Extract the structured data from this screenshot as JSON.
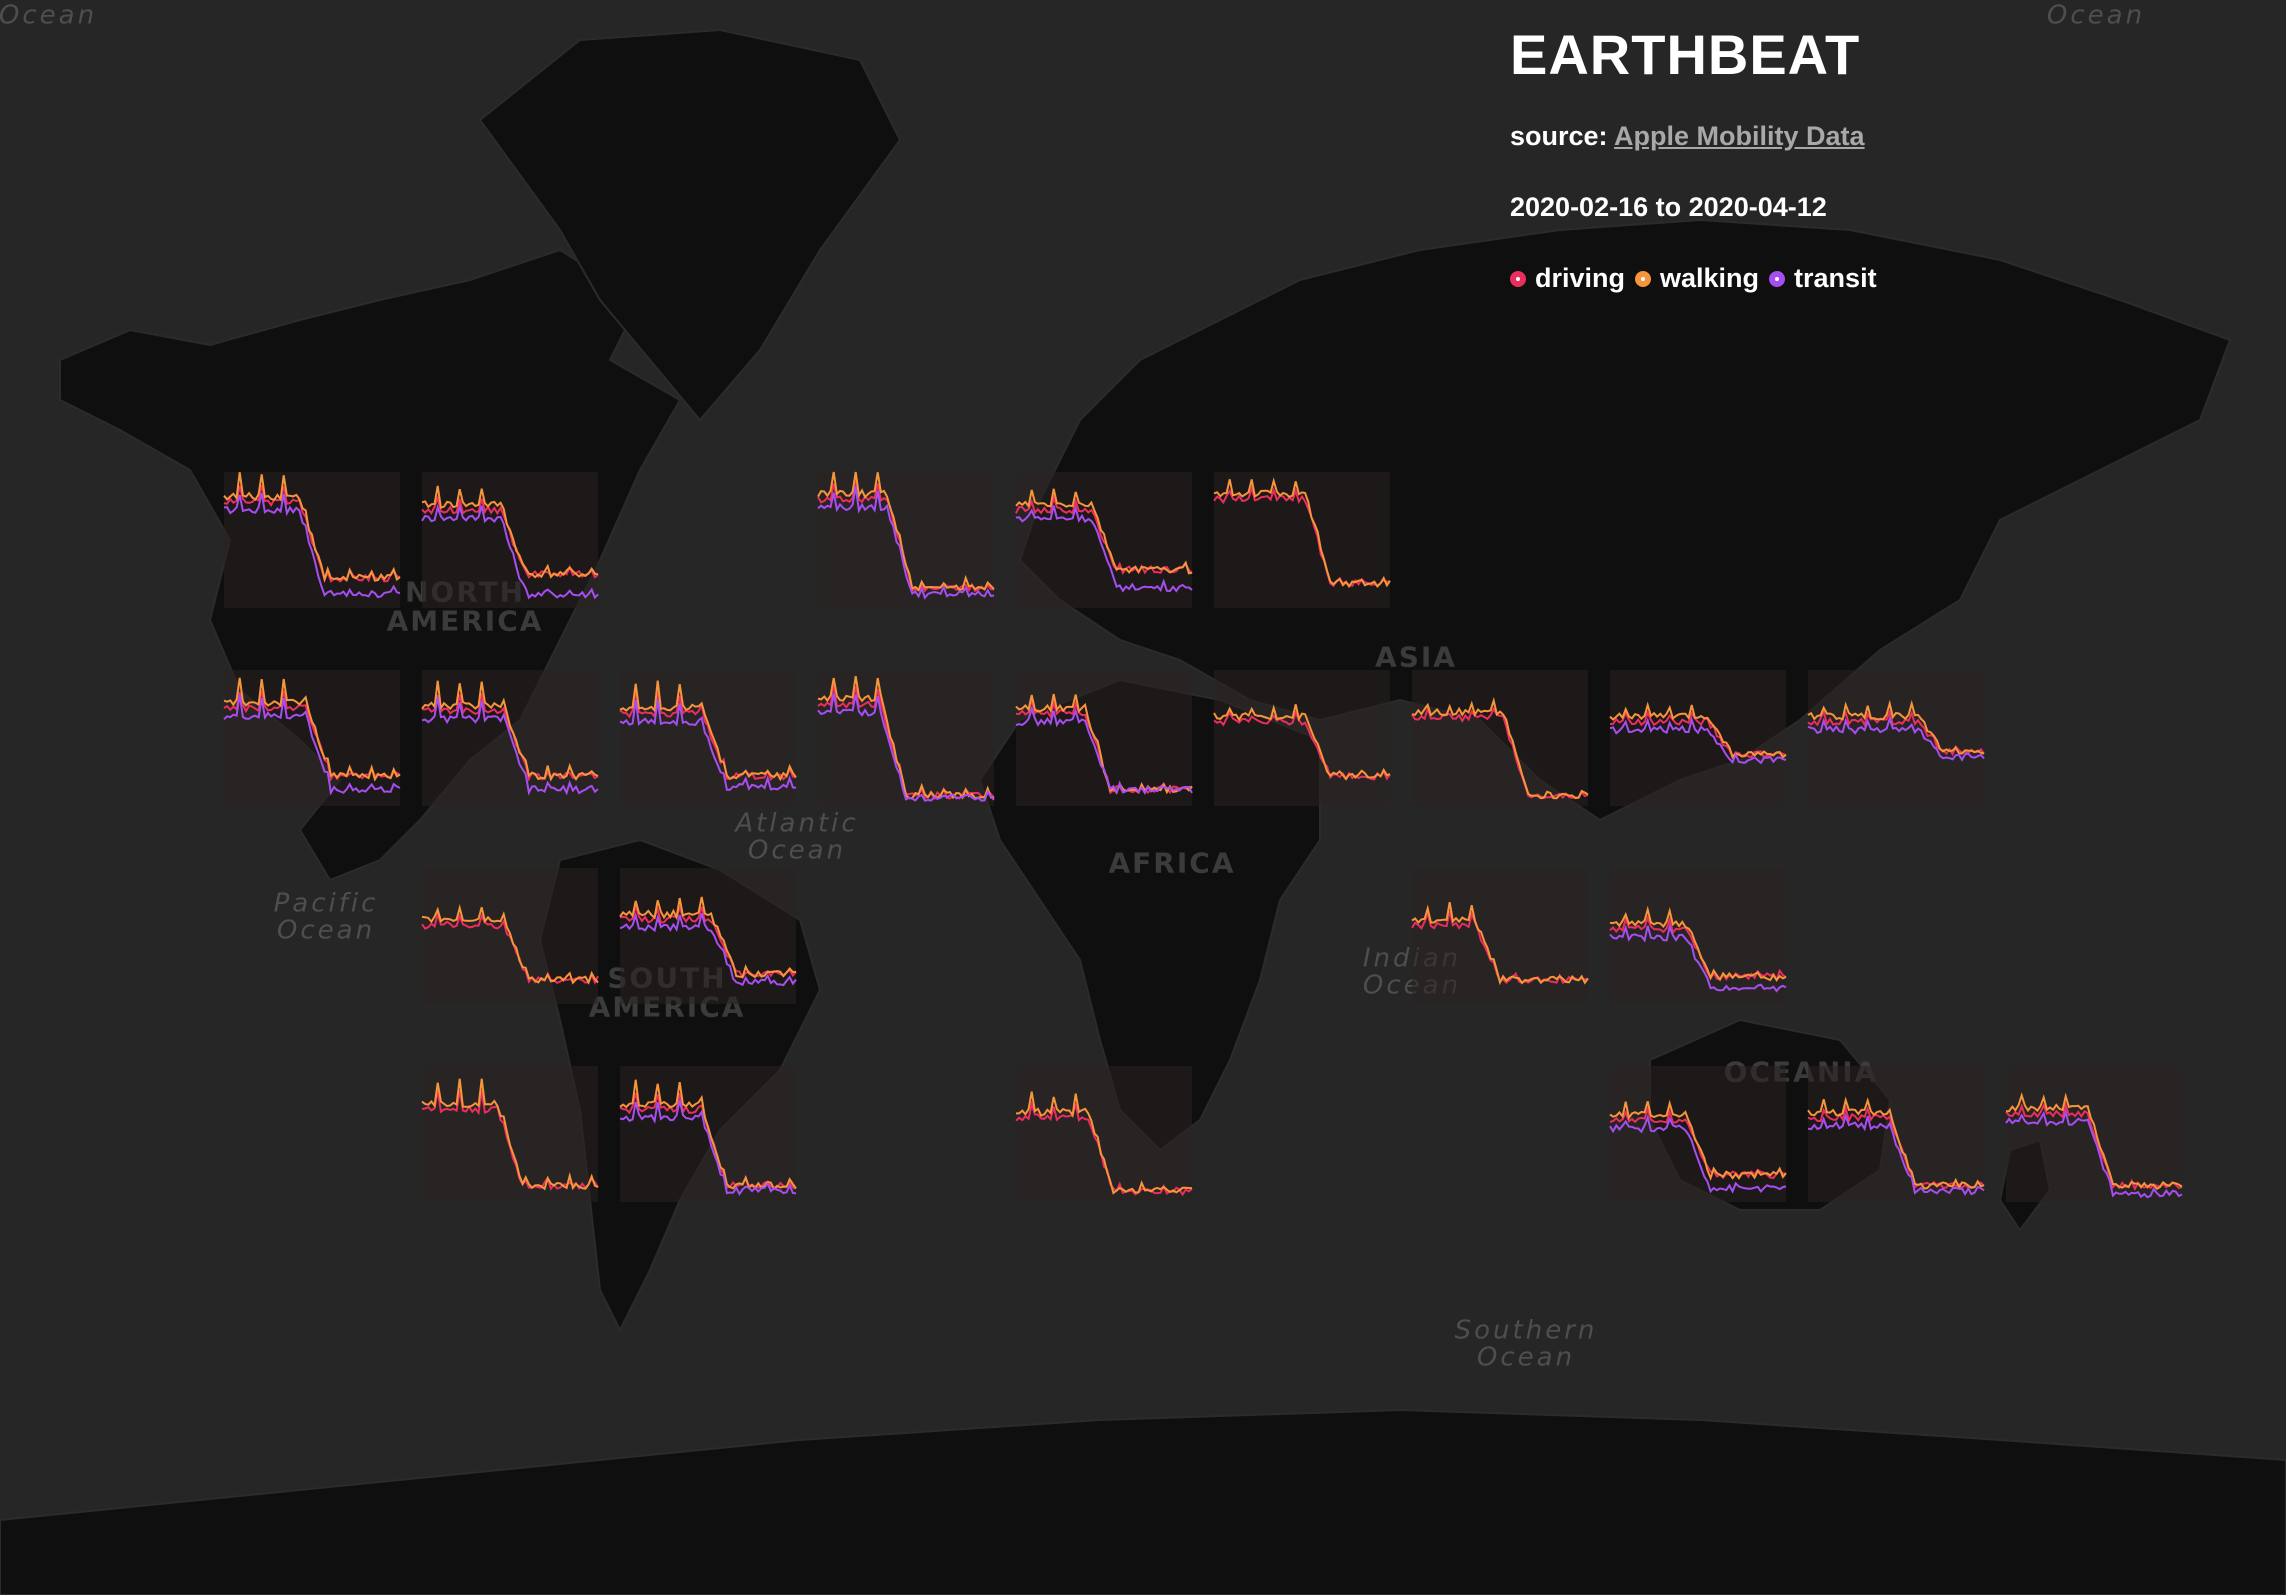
{
  "panel": {
    "title": "EARTHBEAT",
    "source_label": "source:",
    "source_link": "Apple Mobility Data",
    "date_from": "2020-02-16",
    "date_sep": "to",
    "date_to": "2020-04-12"
  },
  "legend": [
    {
      "name": "driving",
      "color": "#ea2e5e"
    },
    {
      "name": "walking",
      "color": "#f6953a"
    },
    {
      "name": "transit",
      "color": "#a64ef0"
    }
  ],
  "map_labels": {
    "oceans": [
      {
        "id": "ocean-nw",
        "text": "Ocean"
      },
      {
        "id": "ocean-ne",
        "text": "Ocean"
      },
      {
        "id": "atlantic",
        "text": "Atlantic\nOcean"
      },
      {
        "id": "pacific",
        "text": "Pacific\nOcean"
      },
      {
        "id": "indian",
        "text": "Indian\nOcean"
      },
      {
        "id": "southern",
        "text": "Southern\nOcean"
      }
    ],
    "continents": [
      {
        "id": "north-america",
        "text": "NORTH\nAMERICA"
      },
      {
        "id": "south-america",
        "text": "SOUTH\nAMERICA"
      },
      {
        "id": "asia",
        "text": "ASIA"
      },
      {
        "id": "africa",
        "text": "AFRICA"
      },
      {
        "id": "oceania",
        "text": "OCEANIA"
      }
    ]
  },
  "chart_data": {
    "type": "line",
    "x_range": [
      "2020-02-16",
      "2020-04-12"
    ],
    "n_days": 57,
    "series_names": [
      "driving",
      "walking",
      "transit"
    ],
    "locations": [
      {
        "row": 0,
        "col": 0,
        "series": [
          "driving",
          "walking",
          "transit"
        ],
        "pre": 0.78,
        "post": 0.22,
        "drop": 0.42,
        "post_transit": 0.1,
        "wobble": 0.13
      },
      {
        "row": 0,
        "col": 1,
        "series": [
          "driving",
          "walking",
          "transit"
        ],
        "pre": 0.72,
        "post": 0.25,
        "drop": 0.44,
        "post_transit": 0.1,
        "wobble": 0.1
      },
      {
        "row": 0,
        "col": 3,
        "series": [
          "driving",
          "walking",
          "transit"
        ],
        "pre": 0.8,
        "post": 0.15,
        "drop": 0.38,
        "post_transit": 0.1,
        "wobble": 0.13
      },
      {
        "row": 0,
        "col": 4,
        "series": [
          "driving",
          "walking",
          "transit"
        ],
        "pre": 0.72,
        "post": 0.28,
        "drop": 0.42,
        "post_transit": 0.15,
        "wobble": 0.08
      },
      {
        "row": 0,
        "col": 5,
        "series": [
          "driving",
          "walking"
        ],
        "pre": 0.8,
        "post": 0.18,
        "drop": 0.5,
        "post_transit": 0.2,
        "wobble": 0.08
      },
      {
        "row": 1,
        "col": 0,
        "series": [
          "driving",
          "walking",
          "transit"
        ],
        "pre": 0.72,
        "post": 0.22,
        "drop": 0.45,
        "post_transit": 0.12,
        "wobble": 0.14
      },
      {
        "row": 1,
        "col": 1,
        "series": [
          "driving",
          "walking",
          "transit"
        ],
        "pre": 0.7,
        "post": 0.22,
        "drop": 0.45,
        "post_transit": 0.12,
        "wobble": 0.14
      },
      {
        "row": 1,
        "col": 2,
        "series": [
          "driving",
          "walking",
          "transit"
        ],
        "pre": 0.68,
        "post": 0.22,
        "drop": 0.45,
        "post_transit": 0.14,
        "wobble": 0.14
      },
      {
        "row": 1,
        "col": 3,
        "series": [
          "driving",
          "walking",
          "transit"
        ],
        "pre": 0.75,
        "post": 0.08,
        "drop": 0.35,
        "post_transit": 0.06,
        "wobble": 0.12
      },
      {
        "row": 1,
        "col": 4,
        "series": [
          "driving",
          "walking",
          "transit"
        ],
        "pre": 0.68,
        "post": 0.12,
        "drop": 0.38,
        "post_transit": 0.12,
        "wobble": 0.08
      },
      {
        "row": 1,
        "col": 5,
        "series": [
          "driving",
          "walking"
        ],
        "pre": 0.62,
        "post": 0.22,
        "drop": 0.5,
        "post_transit": 0.2,
        "wobble": 0.05
      },
      {
        "row": 1,
        "col": 6,
        "series": [
          "driving",
          "walking"
        ],
        "pre": 0.65,
        "post": 0.08,
        "drop": 0.5,
        "post_transit": 0.08,
        "wobble": 0.05
      },
      {
        "row": 1,
        "col": 7,
        "series": [
          "driving",
          "walking",
          "transit"
        ],
        "pre": 0.62,
        "post": 0.38,
        "drop": 0.55,
        "post_transit": 0.34,
        "wobble": 0.05
      },
      {
        "row": 1,
        "col": 8,
        "series": [
          "driving",
          "walking",
          "transit"
        ],
        "pre": 0.62,
        "post": 0.4,
        "drop": 0.62,
        "post_transit": 0.36,
        "wobble": 0.06
      },
      {
        "row": 2,
        "col": 1,
        "series": [
          "driving",
          "walking"
        ],
        "pre": 0.58,
        "post": 0.18,
        "drop": 0.45,
        "post_transit": 0.18,
        "wobble": 0.07
      },
      {
        "row": 2,
        "col": 2,
        "series": [
          "driving",
          "walking",
          "transit"
        ],
        "pre": 0.62,
        "post": 0.22,
        "drop": 0.5,
        "post_transit": 0.16,
        "wobble": 0.09
      },
      {
        "row": 2,
        "col": 6,
        "series": [
          "driving",
          "walking"
        ],
        "pre": 0.58,
        "post": 0.18,
        "drop": 0.35,
        "post_transit": 0.12,
        "wobble": 0.08
      },
      {
        "row": 2,
        "col": 7,
        "series": [
          "driving",
          "walking",
          "transit"
        ],
        "pre": 0.55,
        "post": 0.2,
        "drop": 0.42,
        "post_transit": 0.12,
        "wobble": 0.07
      },
      {
        "row": 3,
        "col": 1,
        "series": [
          "driving",
          "walking"
        ],
        "pre": 0.68,
        "post": 0.12,
        "drop": 0.42,
        "post_transit": 0.1,
        "wobble": 0.14
      },
      {
        "row": 3,
        "col": 2,
        "series": [
          "driving",
          "walking",
          "transit"
        ],
        "pre": 0.68,
        "post": 0.12,
        "drop": 0.45,
        "post_transit": 0.08,
        "wobble": 0.12
      },
      {
        "row": 3,
        "col": 4,
        "series": [
          "driving",
          "walking"
        ],
        "pre": 0.62,
        "post": 0.08,
        "drop": 0.4,
        "post_transit": 0.06,
        "wobble": 0.1
      },
      {
        "row": 3,
        "col": 7,
        "series": [
          "driving",
          "walking",
          "transit"
        ],
        "pre": 0.6,
        "post": 0.2,
        "drop": 0.42,
        "post_transit": 0.1,
        "wobble": 0.06
      },
      {
        "row": 3,
        "col": 8,
        "series": [
          "driving",
          "walking",
          "transit"
        ],
        "pre": 0.62,
        "post": 0.12,
        "drop": 0.45,
        "post_transit": 0.08,
        "wobble": 0.06
      },
      {
        "row": 3,
        "col": 9,
        "series": [
          "driving",
          "walking",
          "transit"
        ],
        "pre": 0.65,
        "post": 0.12,
        "drop": 0.45,
        "post_transit": 0.06,
        "wobble": 0.06
      }
    ]
  }
}
